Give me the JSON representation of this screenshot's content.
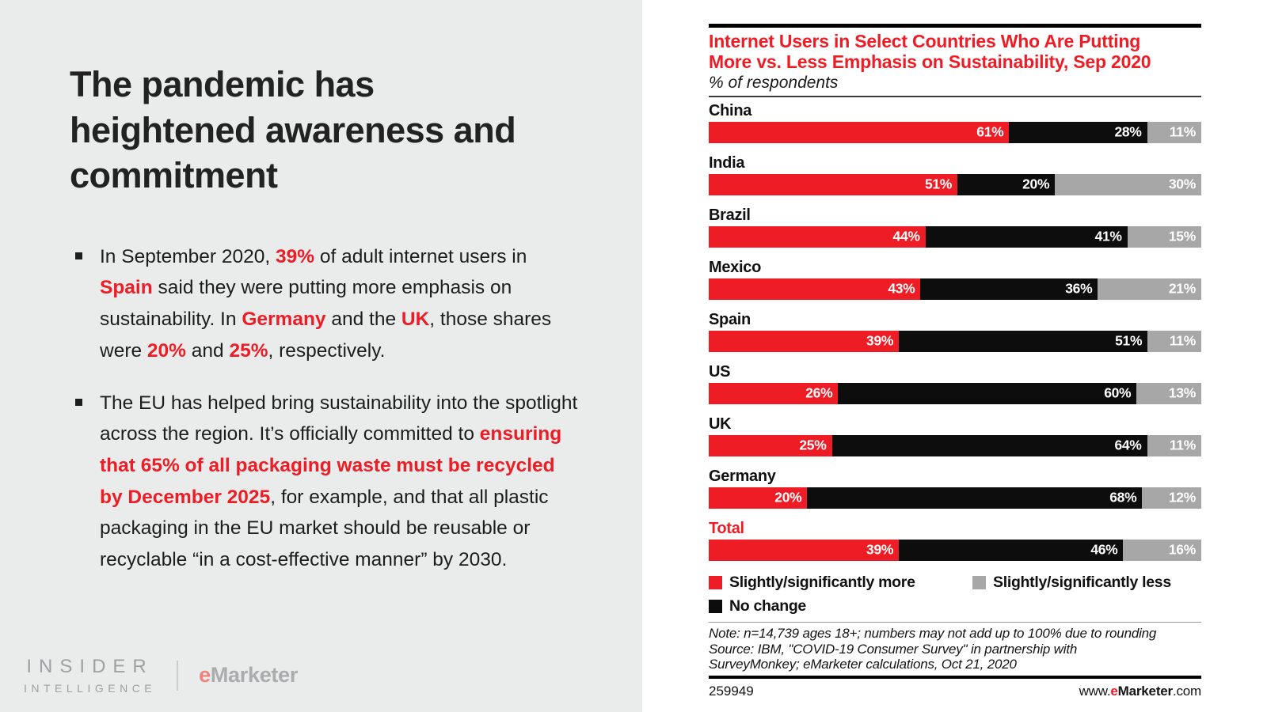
{
  "colors": {
    "accent_red": "#ee1c25",
    "bar_black": "#0d0d0d",
    "bar_gray": "#a7a7a7",
    "panel_gray": "#eaebeb",
    "logo_gray": "#9da1a2",
    "logo_e": "#ef837b"
  },
  "left_panel": {
    "title": "The pandemic has heightened awareness and commitment",
    "bullets": [
      {
        "segments": [
          {
            "t": "In September 2020, "
          },
          {
            "t": "39%",
            "r": true
          },
          {
            "t": " of adult internet users in "
          },
          {
            "t": "Spain",
            "r": true
          },
          {
            "t": " said they were putting more emphasis on sustainability. In "
          },
          {
            "t": "Germany",
            "r": true
          },
          {
            "t": " and the "
          },
          {
            "t": "UK",
            "r": true
          },
          {
            "t": ", those shares were "
          },
          {
            "t": "20%",
            "r": true
          },
          {
            "t": " and "
          },
          {
            "t": "25%",
            "r": true
          },
          {
            "t": ", respectively."
          }
        ]
      },
      {
        "segments": [
          {
            "t": "The EU has helped bring sustainability into the spotlight across the region. It’s officially committed to "
          },
          {
            "t": "ensuring that 65% of all packaging waste must be recycled by December 2025",
            "r": true
          },
          {
            "t": ", for example, and that all plastic packaging in the EU market should be reusable or recyclable “in a cost-effective manner” by 2030."
          }
        ]
      }
    ],
    "footer": {
      "brand_top": "INSIDER",
      "brand_bottom": "INTELLIGENCE",
      "emarketer_e": "e",
      "emarketer_rest": "Marketer"
    }
  },
  "chart": {
    "title": "Internet Users in Select Countries Who Are Putting More vs. Less Emphasis on Sustainability, Sep 2020",
    "subtitle": "% of respondents",
    "legend": [
      {
        "key": "more",
        "label": "Slightly/significantly more"
      },
      {
        "key": "less",
        "label": "Slightly/significantly less"
      },
      {
        "key": "none",
        "label": "No change"
      }
    ],
    "note": "Note: n=14,739 ages 18+; numbers may not add up to 100% due to rounding",
    "source": "Source: IBM, \"COVID-19 Consumer Survey\" in partnership with SurveyMonkey; eMarketer calculations, Oct 21, 2020",
    "footer": {
      "id": "259949",
      "site_prefix": "www.",
      "site_e": "e",
      "site_rest": "Marketer",
      "site_suffix": ".com"
    }
  },
  "chart_data": {
    "type": "bar",
    "orientation": "horizontal",
    "stacked": true,
    "title": "Internet Users in Select Countries Who Are Putting More vs. Less Emphasis on Sustainability, Sep 2020",
    "subtitle": "% of respondents",
    "value_suffix": "%",
    "xlim": [
      0,
      100
    ],
    "legend_position": "bottom",
    "grid": false,
    "categories": [
      "China",
      "India",
      "Brazil",
      "Mexico",
      "Spain",
      "US",
      "UK",
      "Germany",
      "Total"
    ],
    "highlight_categories": [
      "Total"
    ],
    "series": [
      {
        "name": "Slightly/significantly more",
        "key": "more",
        "color": "#ee1c25",
        "values": [
          61,
          51,
          44,
          43,
          39,
          26,
          25,
          20,
          39
        ]
      },
      {
        "name": "No change",
        "key": "none",
        "color": "#0d0d0d",
        "values": [
          28,
          20,
          41,
          36,
          51,
          60,
          64,
          68,
          46
        ]
      },
      {
        "name": "Slightly/significantly less",
        "key": "less",
        "color": "#a7a7a7",
        "values": [
          11,
          30,
          15,
          21,
          11,
          13,
          11,
          12,
          16
        ]
      }
    ]
  }
}
